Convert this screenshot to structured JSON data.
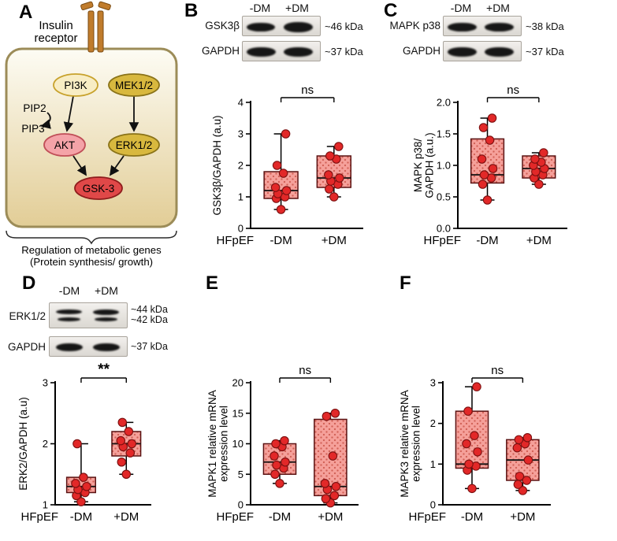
{
  "colors": {
    "background": "#ffffff",
    "box_fill": "#f5a09a",
    "box_dot": "#d06055",
    "box_stroke": "#5a1212",
    "point_fill": "#e22828",
    "point_stroke": "#7c1010",
    "axis": "#000000",
    "band": "#161616",
    "cell_border": "#9c8c58",
    "cell_top": "#fdfcf4",
    "cell_bottom": "#e2cd96",
    "pi3k_fill": "#f8edc4",
    "pi3k_stroke": "#c8a22c",
    "mek_fill": "#d8b83e",
    "mek_stroke": "#8a7318",
    "akt_fill": "#f4a3a8",
    "akt_stroke": "#c04f58",
    "erk_fill": "#d8b83e",
    "erk_stroke": "#8a7318",
    "gsk_fill": "#e04848",
    "gsk_stroke": "#8e1c1c",
    "receptor_fill": "#c07c2c",
    "receptor_stroke": "#7a4a12"
  },
  "panelA": {
    "label": "A",
    "receptor_line1": "Insulin",
    "receptor_line2": "receptor",
    "nodes": {
      "pi3k": "PI3K",
      "mek12": "MEK1/2",
      "pip2": "PIP2",
      "pip3": "PIP3",
      "akt": "AKT",
      "erk12": "ERK1/2",
      "gsk3": "GSK-3"
    },
    "caption_line1": "Regulation of metabolic genes",
    "caption_line2": "(Protein synthesis/ growth)"
  },
  "panelB": {
    "label": "B",
    "lanes": [
      "-DM",
      "+DM"
    ],
    "rows": [
      {
        "protein": "GSK3β",
        "kda": "~46 kDa"
      },
      {
        "protein": "GAPDH",
        "kda": "~37 kDa"
      }
    ]
  },
  "panelC": {
    "label": "C",
    "lanes": [
      "-DM",
      "+DM"
    ],
    "rows": [
      {
        "protein": "MAPK p38",
        "kda": "~38 kDa"
      },
      {
        "protein": "GAPDH",
        "kda": "~37 kDa"
      }
    ]
  },
  "panelD": {
    "label": "D",
    "lanes": [
      "-DM",
      "+DM"
    ],
    "rows": [
      {
        "protein": "ERK1/2",
        "kda": "~44 kDa",
        "kda2": "~42 kDa"
      },
      {
        "protein": "GAPDH",
        "kda": "~37 kDa"
      }
    ]
  },
  "panelE": {
    "label": "E"
  },
  "panelF": {
    "label": "F"
  },
  "chart_data": [
    {
      "id": "chart-b",
      "panel": "B",
      "type": "box",
      "ylabel_lines": [
        "GSK3β/GAPDH (a.u)"
      ],
      "xlabel": "HFpEF",
      "categories": [
        "-DM",
        "+DM"
      ],
      "ylim": [
        0,
        4
      ],
      "yticks": [
        0,
        1,
        2,
        3,
        4
      ],
      "ytick_labels": [
        "0",
        "1",
        "2",
        "3",
        "4"
      ],
      "significance": "ns",
      "series": [
        {
          "name": "-DM",
          "q1": 0.95,
          "median": 1.2,
          "q3": 1.8,
          "lo": 0.6,
          "hi": 3.0,
          "points": [
            0.6,
            0.95,
            1.0,
            1.1,
            1.2,
            1.3,
            1.75,
            2.0,
            3.0
          ]
        },
        {
          "name": "+DM",
          "q1": 1.3,
          "median": 1.6,
          "q3": 2.3,
          "lo": 1.0,
          "hi": 2.6,
          "points": [
            1.0,
            1.25,
            1.4,
            1.5,
            1.6,
            1.7,
            2.2,
            2.3,
            2.6
          ]
        }
      ]
    },
    {
      "id": "chart-c",
      "panel": "C",
      "type": "box",
      "ylabel_lines": [
        "MAPK p38/",
        "GAPDH (a.u.)"
      ],
      "xlabel": "HFpEF",
      "categories": [
        "-DM",
        "+DM"
      ],
      "ylim": [
        0,
        2
      ],
      "yticks": [
        0,
        0.5,
        1,
        1.5,
        2
      ],
      "ytick_labels": [
        "0.0",
        "0.5",
        "1.0",
        "1.5",
        "2.0"
      ],
      "significance": "ns",
      "series": [
        {
          "name": "-DM",
          "q1": 0.72,
          "median": 0.85,
          "q3": 1.42,
          "lo": 0.45,
          "hi": 1.75,
          "points": [
            0.45,
            0.7,
            0.8,
            0.85,
            0.95,
            1.1,
            1.4,
            1.6,
            1.75
          ]
        },
        {
          "name": "+DM",
          "q1": 0.8,
          "median": 0.95,
          "q3": 1.15,
          "lo": 0.7,
          "hi": 1.2,
          "points": [
            0.7,
            0.8,
            0.85,
            0.9,
            0.95,
            1.0,
            1.05,
            1.1,
            1.2
          ]
        }
      ]
    },
    {
      "id": "chart-d",
      "panel": "D",
      "type": "box",
      "ylabel_lines": [
        "ERK2/GAPDH (a.u)"
      ],
      "xlabel": "HFpEF",
      "categories": [
        "-DM",
        "+DM"
      ],
      "ylim": [
        1,
        3
      ],
      "yticks": [
        1,
        2,
        3
      ],
      "ytick_labels": [
        "1",
        "2",
        "3"
      ],
      "significance": "**",
      "series": [
        {
          "name": "-DM",
          "q1": 1.2,
          "median": 1.3,
          "q3": 1.45,
          "lo": 1.05,
          "hi": 2.0,
          "points": [
            1.05,
            1.15,
            1.2,
            1.25,
            1.3,
            1.35,
            1.45,
            2.0
          ]
        },
        {
          "name": "+DM",
          "q1": 1.8,
          "median": 2.0,
          "q3": 2.2,
          "lo": 1.5,
          "hi": 2.35,
          "points": [
            1.5,
            1.7,
            1.85,
            1.95,
            2.0,
            2.05,
            2.2,
            2.35
          ]
        }
      ]
    },
    {
      "id": "chart-e",
      "panel": "E",
      "type": "box",
      "ylabel_lines": [
        "MAPK1 relative mRNA",
        "expression level"
      ],
      "xlabel": "HFpEF",
      "categories": [
        "-DM",
        "+DM"
      ],
      "ylim": [
        0,
        20
      ],
      "yticks": [
        0,
        5,
        10,
        15,
        20
      ],
      "ytick_labels": [
        "0",
        "5",
        "10",
        "15",
        "20"
      ],
      "significance": "ns",
      "series": [
        {
          "name": "-DM",
          "q1": 5,
          "median": 7,
          "q3": 10,
          "lo": 3.5,
          "hi": 10.5,
          "points": [
            3.5,
            5,
            6,
            6.5,
            7,
            8,
            9.5,
            10,
            10.5
          ]
        },
        {
          "name": "+DM",
          "q1": 1.5,
          "median": 3,
          "q3": 14,
          "lo": 0.3,
          "hi": 15,
          "points": [
            0.3,
            1,
            1.5,
            2.5,
            3,
            3.5,
            8,
            14.5,
            15
          ]
        }
      ]
    },
    {
      "id": "chart-f",
      "panel": "F",
      "type": "box",
      "ylabel_lines": [
        "MAPK3 relative mRNA",
        "expression level"
      ],
      "xlabel": "HFpEF",
      "categories": [
        "-DM",
        "+DM"
      ],
      "ylim": [
        0,
        3
      ],
      "yticks": [
        0,
        1,
        2,
        3
      ],
      "ytick_labels": [
        "0",
        "1",
        "2",
        "3"
      ],
      "significance": "ns",
      "series": [
        {
          "name": "-DM",
          "q1": 0.9,
          "median": 1.0,
          "q3": 2.3,
          "lo": 0.4,
          "hi": 2.9,
          "points": [
            0.4,
            0.85,
            0.95,
            1.0,
            1.3,
            1.5,
            1.7,
            2.3,
            2.9
          ]
        },
        {
          "name": "+DM",
          "q1": 0.6,
          "median": 1.1,
          "q3": 1.6,
          "lo": 0.35,
          "hi": 1.65,
          "points": [
            0.35,
            0.5,
            0.6,
            0.7,
            1.1,
            1.4,
            1.5,
            1.6,
            1.65
          ]
        }
      ]
    }
  ]
}
